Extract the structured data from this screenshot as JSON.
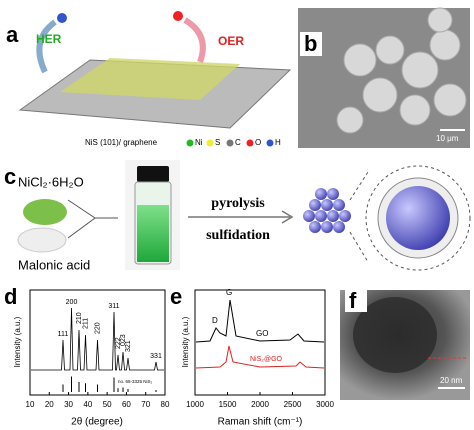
{
  "panel_a": {
    "label": "a",
    "her": "HER",
    "oer": "OER",
    "caption": "NiS (101)/ graphene",
    "legend": [
      "Ni",
      "S",
      "C",
      "O",
      "H"
    ]
  },
  "panel_b": {
    "label": "b",
    "scale_bar": "10 μm"
  },
  "panel_c": {
    "label": "c",
    "reagent_1": "NiCl₂·6H₂O",
    "reagent_2": "Malonic acid",
    "step_1": "pyrolysis",
    "step_2": "sulfidation"
  },
  "panel_d": {
    "label": "d",
    "y_label": "Intensity (a.u.)",
    "x_label": "2θ (degree)",
    "x_ticks": [
      10,
      20,
      30,
      40,
      50,
      60,
      70,
      80
    ],
    "peaks": [
      "111",
      "200",
      "210",
      "211",
      "220",
      "311",
      "222",
      "023",
      "321",
      "331"
    ],
    "reference": "no. 65-3325 NiS₂"
  },
  "panel_e": {
    "label": "e",
    "y_label": "Intensity (a.u.)",
    "x_label": "Raman shift (cm⁻¹)",
    "x_ticks": [
      1000,
      1500,
      2000,
      2500,
      3000
    ],
    "band_d": "D",
    "band_g": "G",
    "trace_1": "GO",
    "trace_2": "NiS₂@GO"
  },
  "panel_f": {
    "label": "f",
    "scale_bar": "20 nm"
  }
}
